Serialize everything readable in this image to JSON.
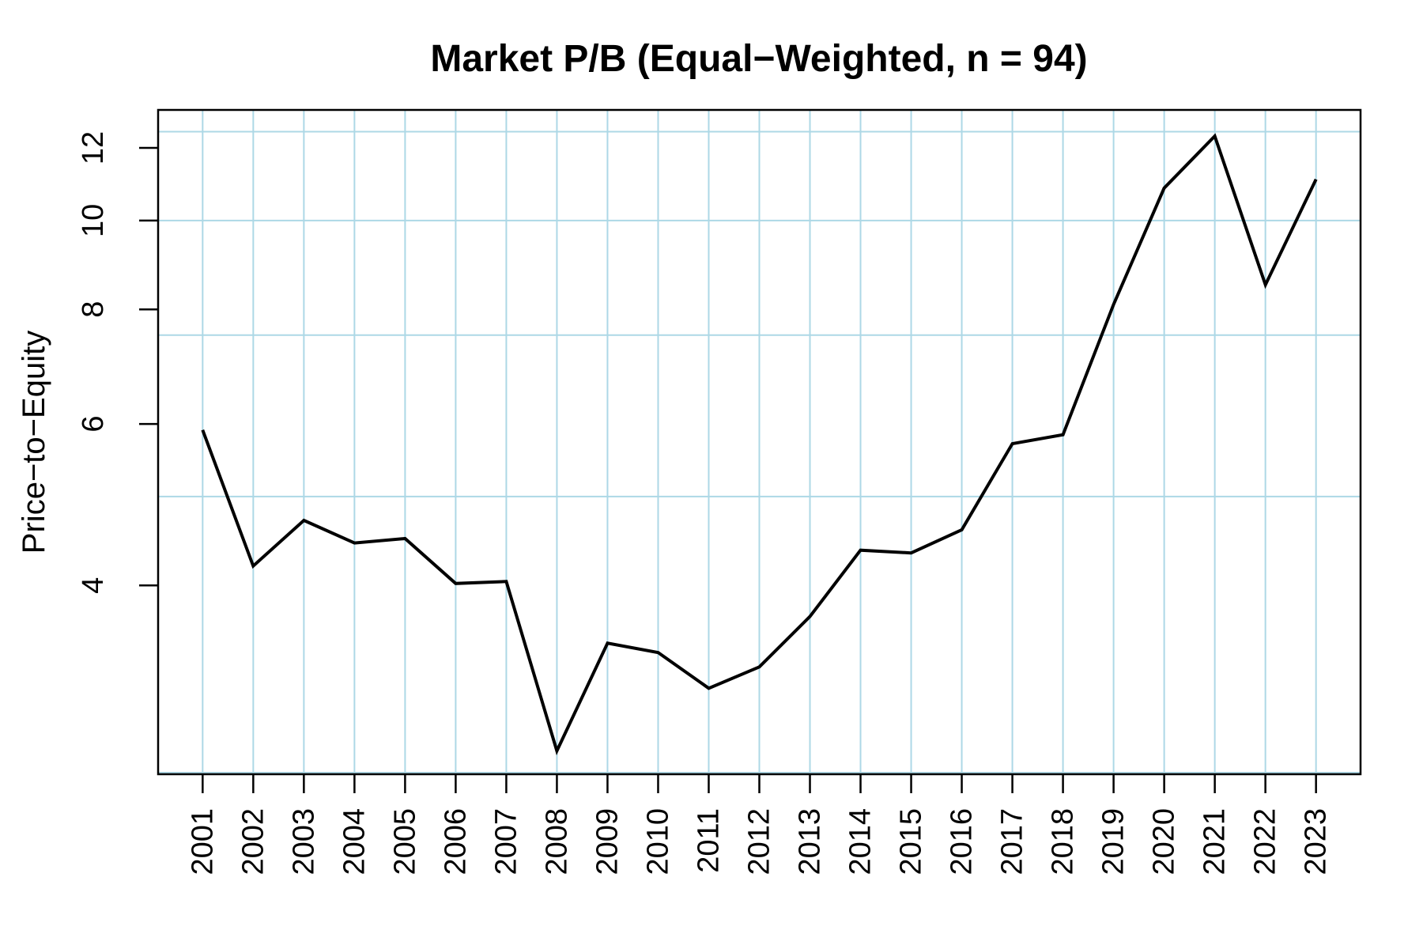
{
  "page": {
    "background_color": "#ffffff"
  },
  "chart_data": {
    "type": "line",
    "title": "Market P/B (Equal−Weighted, n = 94)",
    "xlabel": "",
    "ylabel": "Price−to−Equity",
    "y_scale": "log10",
    "grid": {
      "shown": true,
      "color": "#ADD8E6",
      "h_line_values": [
        2.5,
        5,
        7.5,
        10,
        12.5
      ],
      "v_lines_at_every_year": true
    },
    "line_color": "#000000",
    "axis_color": "#000000",
    "legend": "none",
    "y_ticks": [
      4,
      6,
      8,
      10,
      12
    ],
    "axis_range": {
      "x": [
        2000.12,
        2023.88
      ],
      "y": [
        2.49,
        13.2
      ],
      "y_log10": [
        0.3962,
        1.1206
      ]
    },
    "x": [
      2001,
      2002,
      2003,
      2004,
      2005,
      2006,
      2007,
      2008,
      2009,
      2010,
      2011,
      2012,
      2013,
      2014,
      2015,
      2016,
      2017,
      2018,
      2019,
      2020,
      2021,
      2022,
      2023
    ],
    "series": [
      {
        "name": "Market P/B (equal-weighted)",
        "values": [
          5.91,
          4.2,
          4.71,
          4.45,
          4.5,
          4.02,
          4.04,
          2.64,
          3.46,
          3.38,
          3.09,
          3.26,
          3.7,
          4.37,
          4.34,
          4.6,
          5.71,
          5.84,
          8.1,
          10.85,
          12.36,
          8.51,
          11.09
        ]
      }
    ]
  }
}
